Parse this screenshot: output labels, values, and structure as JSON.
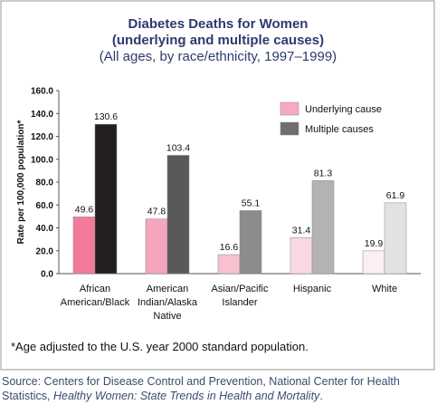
{
  "chart_data": {
    "type": "bar",
    "title": "Diabetes Deaths for Women",
    "title_note": "(underlying and multiple causes)",
    "subtitle": "(All ages, by race/ethnicity, 1997–1999)",
    "y_label": "Rate per 100,000 population*",
    "categories": [
      "African American/Black",
      "American Indian/Alaska Native",
      "Asian/Pacific Islander",
      "Hispanic",
      "White"
    ],
    "series": [
      {
        "name": "Underlying cause",
        "color": "#f6a9bf",
        "colors": [
          "#f27b9b",
          "#f5a5bc",
          "#f7c1d0",
          "#fad8e2",
          "#fdeef3"
        ],
        "values": [
          49.6,
          47.8,
          16.6,
          31.4,
          19.9
        ]
      },
      {
        "name": "Multiple causes",
        "color": "#6e6e6e",
        "colors": [
          "#231f20",
          "#595959",
          "#8c8c8c",
          "#b3b3b3",
          "#e2e2e2"
        ],
        "values": [
          130.6,
          103.4,
          55.1,
          81.3,
          61.9
        ]
      }
    ],
    "ylim": [
      0,
      160
    ],
    "yticks": [
      {
        "value": 0,
        "label": "0.0"
      },
      {
        "value": 20,
        "label": "20.0"
      },
      {
        "value": 40,
        "label": "40.0"
      },
      {
        "value": 60,
        "label": "60.0"
      },
      {
        "value": 80,
        "label": "80.0"
      },
      {
        "value": 100,
        "label": "100.0"
      },
      {
        "value": 120,
        "label": "120.0"
      },
      {
        "value": 140,
        "label": "140.0"
      },
      {
        "value": 160,
        "label": "160.0"
      }
    ],
    "footnote": "*Age adjusted to the U.S. year 2000 standard population.",
    "source": "Source: Centers for Disease Control and Prevention, National Center for Health Statistics, ",
    "source_title": "Healthy Women: State Trends in Health and Mortality",
    "source_end": "."
  }
}
